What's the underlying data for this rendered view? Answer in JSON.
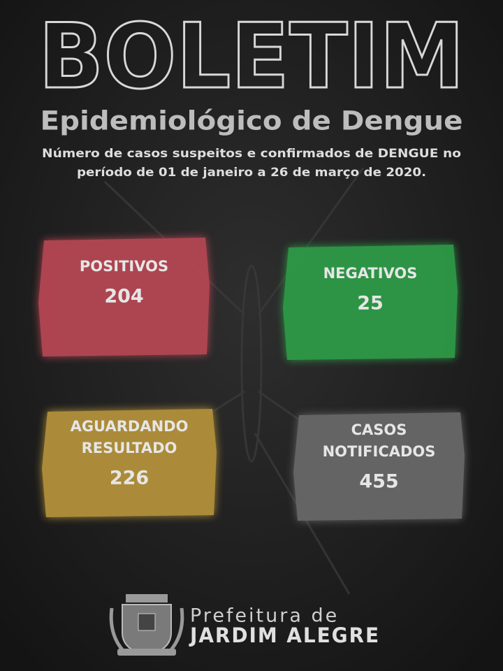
{
  "header": {
    "title": "BOLETIM",
    "subtitle": "Epidemiológico de Dengue",
    "description": [
      "Número de casos suspeitos e confirmados de DENGUE no",
      "período de 01 de janeiro a 26 de março de 2020."
    ]
  },
  "cards": [
    {
      "label": [
        "POSITIVOS"
      ],
      "value": 204,
      "color": "#b54653"
    },
    {
      "label": [
        "NEGATIVOS"
      ],
      "value": 25,
      "color": "#2e9a47"
    },
    {
      "label": [
        "AGUARDANDO",
        "RESULTADO"
      ],
      "value": 226,
      "color": "#b3913b"
    },
    {
      "label": [
        "CASOS",
        "NOTIFICADOS"
      ],
      "value": 455,
      "color": "#686868"
    }
  ],
  "footer": {
    "line1": "Prefeitura de",
    "line2": "JARDIM ALEGRE"
  }
}
